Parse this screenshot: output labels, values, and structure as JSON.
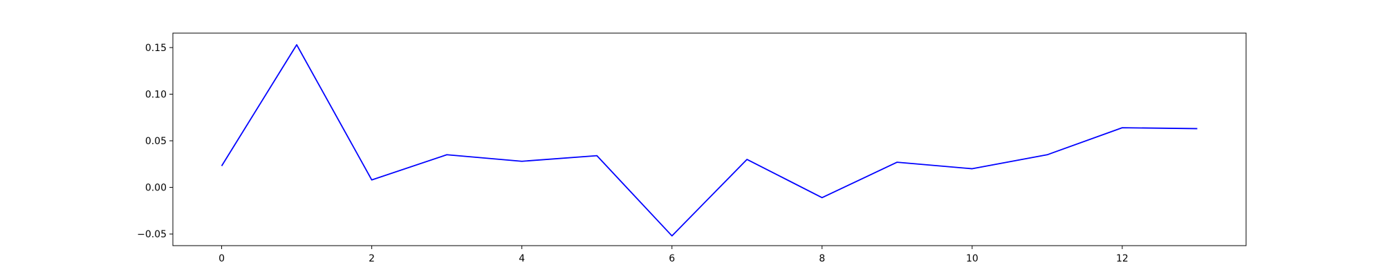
{
  "chart_data": {
    "type": "line",
    "title": "",
    "xlabel": "",
    "ylabel": "",
    "x": [
      0,
      1,
      2,
      3,
      4,
      5,
      6,
      7,
      8,
      9,
      10,
      11,
      12,
      13
    ],
    "series": [
      {
        "values": [
          0.023,
          0.153,
          0.008,
          0.035,
          0.028,
          0.034,
          -0.052,
          0.03,
          -0.011,
          0.027,
          0.02,
          0.035,
          0.064,
          0.063
        ],
        "color": "#0000ff"
      }
    ],
    "xlim": [
      -0.65,
      13.65
    ],
    "ylim": [
      -0.0625,
      0.1655
    ],
    "xticks": [
      0,
      2,
      4,
      6,
      8,
      10,
      12
    ],
    "xtick_labels": [
      "0",
      "2",
      "4",
      "6",
      "8",
      "10",
      "12"
    ],
    "yticks": [
      -0.05,
      0.0,
      0.05,
      0.1,
      0.15
    ],
    "ytick_labels": [
      "−0.05",
      "0.00",
      "0.05",
      "0.10",
      "0.15"
    ],
    "grid": false,
    "legend": "none"
  }
}
